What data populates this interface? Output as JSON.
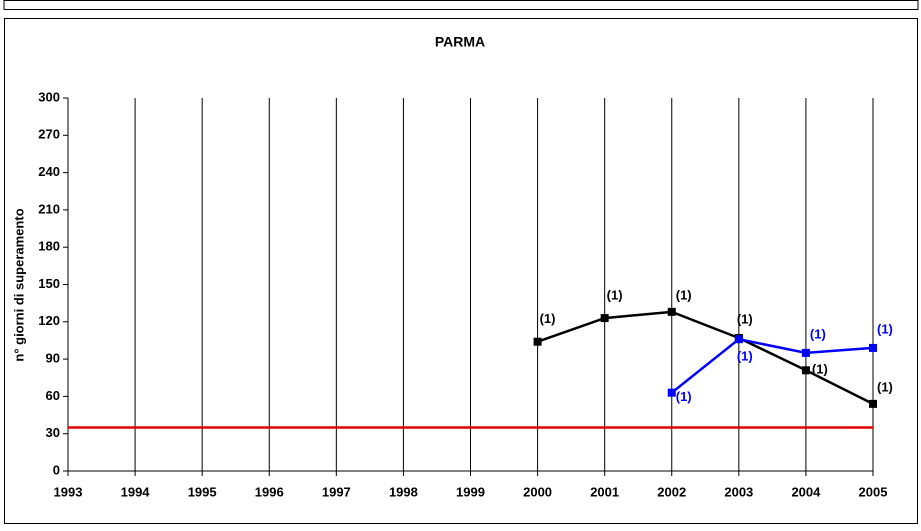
{
  "chart_data": {
    "type": "line",
    "title": "PARMA",
    "ylabel": "n° giorni di superamento",
    "xlim": [
      1993,
      2005
    ],
    "xticks": [
      1993,
      1994,
      1995,
      1996,
      1997,
      1998,
      1999,
      2000,
      2001,
      2002,
      2003,
      2004,
      2005
    ],
    "ylim": [
      0,
      300
    ],
    "yticks": [
      0,
      30,
      60,
      90,
      120,
      150,
      180,
      210,
      240,
      270,
      300
    ],
    "grid": "x",
    "threshold": 35,
    "threshold_color": "#e00000",
    "series": [
      {
        "color": "#000000",
        "x": [
          2000,
          2001,
          2002,
          2003,
          2004,
          2005
        ],
        "values": [
          104,
          123,
          128,
          107,
          81,
          54
        ],
        "annotations": [
          "(1)",
          "(1)",
          "(1)",
          "(1)",
          "(1)",
          "(1)"
        ]
      },
      {
        "color": "#0000ff",
        "x": [
          2002,
          2003,
          2004,
          2005
        ],
        "values": [
          63,
          106,
          95,
          99
        ],
        "annotations": [
          "(1)",
          "(1)",
          "(1)",
          "(1)"
        ]
      }
    ]
  }
}
